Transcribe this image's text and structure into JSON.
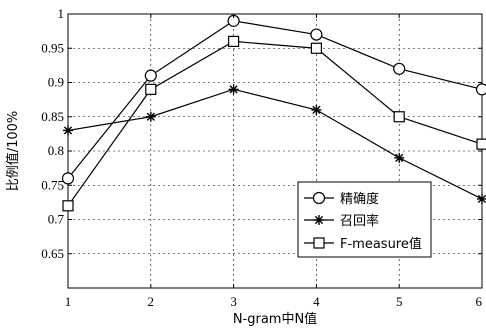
{
  "chart_data": {
    "type": "line",
    "xlabel": "N-gram中N值",
    "ylabel": "比例值/100%",
    "xlim": [
      1,
      6
    ],
    "ylim": [
      0.6,
      1.0
    ],
    "x": [
      1,
      2,
      3,
      4,
      5,
      6
    ],
    "x_tick_labels": [
      "1",
      "2",
      "3",
      "4",
      "5",
      "6"
    ],
    "y_ticks": [
      0.65,
      0.7,
      0.75,
      0.8,
      0.85,
      0.9,
      0.95,
      1
    ],
    "y_tick_labels": [
      "0.65",
      "0.7",
      "0.75",
      "0.8",
      "0.85",
      "0.9",
      "0.95",
      "1"
    ],
    "grid": true,
    "legend_position": "bottom-right",
    "series": [
      {
        "name": "精确度",
        "marker": "circle",
        "values": [
          0.76,
          0.91,
          0.99,
          0.97,
          0.92,
          0.89
        ]
      },
      {
        "name": "召回率",
        "marker": "star",
        "values": [
          0.83,
          0.85,
          0.89,
          0.86,
          0.79,
          0.73
        ]
      },
      {
        "name": "F-measure值",
        "marker": "square",
        "values": [
          0.72,
          0.89,
          0.96,
          0.95,
          0.85,
          0.81
        ]
      }
    ]
  }
}
